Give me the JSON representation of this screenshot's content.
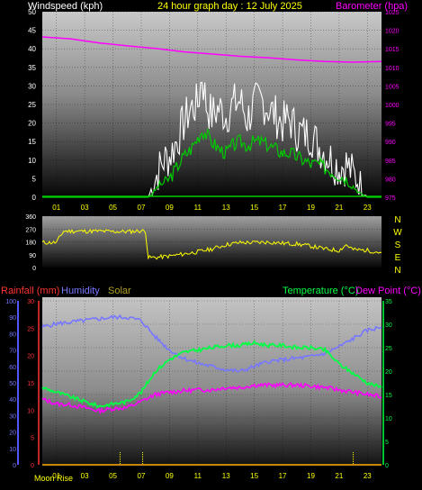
{
  "header": {
    "wind_title": "Windspeed (kph)",
    "graph_title": "24 hour graph day : 12 July 2025",
    "baro_title": "Barometer (hpa)"
  },
  "lower_header": {
    "rainfall": "Rainfall (mm)",
    "humidity": "Humidity",
    "solar": "Solar",
    "temperature": "Temperature (°C)",
    "dewpoint": "Dew Point (°C)"
  },
  "footer": {
    "moon_rise": "Moon Rise"
  },
  "colors": {
    "wind_title": "#ffffff",
    "graph_title": "#ffff00",
    "baro": "#ff00ff",
    "gust": "#ffffff",
    "wind": "#00cc00",
    "direction": "#ffff00",
    "rain": "#ff3333",
    "humidity": "#7777ff",
    "solar": "#ffff00",
    "temperature": "#00ff44",
    "dewpoint": "#ff00ff",
    "moonrise": "#ffaa00"
  },
  "chart_data": [
    {
      "type": "line",
      "title": "Windspeed (kph) / Barometer (hpa)",
      "x_ticks": [
        "01",
        "03",
        "05",
        "07",
        "09",
        "11",
        "13",
        "15",
        "17",
        "19",
        "21",
        "23"
      ],
      "y_left_ticks": [
        "0",
        "5",
        "10",
        "15",
        "20",
        "25",
        "30",
        "35",
        "40",
        "45",
        "50"
      ],
      "y_right_ticks": [
        "975",
        "980",
        "985",
        "990",
        "995",
        "1000",
        "1005",
        "1010",
        "1015",
        "1020",
        "1025"
      ],
      "xlim": [
        0,
        24
      ],
      "ylim_left": [
        0,
        50
      ],
      "ylim_right": [
        975,
        1025
      ],
      "series": [
        {
          "name": "Gust",
          "axis": "left",
          "x": [
            0,
            7.5,
            7.8,
            8.2,
            8.6,
            9,
            9.5,
            10,
            10.5,
            11,
            11.3,
            11.6,
            12,
            12.5,
            13,
            13.5,
            14,
            14.5,
            15,
            15.5,
            16,
            16.5,
            17,
            17.5,
            18,
            18.5,
            19,
            19.5,
            20,
            20.5,
            21,
            21.5,
            22,
            22.5,
            23,
            24
          ],
          "values": [
            0,
            0,
            3,
            7,
            10,
            11,
            15,
            20,
            24,
            25,
            33,
            25,
            22,
            24,
            22,
            25,
            26,
            21,
            25,
            26,
            24,
            22,
            20,
            21,
            18,
            17,
            17,
            14,
            12,
            10,
            8,
            9,
            6,
            4,
            0,
            0
          ]
        },
        {
          "name": "Wind",
          "axis": "left",
          "x": [
            0,
            7.5,
            7.8,
            8.2,
            8.6,
            9,
            9.5,
            10,
            10.5,
            11,
            11.3,
            11.6,
            12,
            12.5,
            13,
            13.5,
            14,
            14.5,
            15,
            15.5,
            16,
            16.5,
            17,
            17.5,
            18,
            18.5,
            19,
            19.5,
            20,
            20.5,
            21,
            21.5,
            22,
            22.5,
            23,
            24
          ],
          "values": [
            0,
            0,
            1,
            3,
            4,
            5,
            8,
            11,
            13,
            16,
            18,
            17,
            15,
            13,
            12,
            14,
            15,
            14,
            15,
            15,
            14,
            13,
            12,
            12,
            11,
            10,
            9,
            9,
            8,
            7,
            6,
            5,
            3,
            1,
            0,
            0
          ]
        },
        {
          "name": "Barometer",
          "axis": "right",
          "x": [
            0,
            2,
            4,
            6,
            8,
            10,
            12,
            14,
            16,
            18,
            20,
            22,
            24
          ],
          "values": [
            1018.2,
            1017.7,
            1016.6,
            1015.8,
            1015.1,
            1014.2,
            1013.6,
            1013.0,
            1012.6,
            1012.0,
            1011.6,
            1011.4,
            1011.6
          ]
        }
      ]
    },
    {
      "type": "line",
      "title": "Wind direction",
      "y_left_ticks": [
        "0",
        "90",
        "180",
        "270",
        "360"
      ],
      "y_right_ticks": [
        "N",
        "W",
        "S",
        "E",
        "N"
      ],
      "ylim": [
        0,
        360
      ],
      "series": [
        {
          "name": "Direction",
          "x": [
            0,
            1,
            1.5,
            2,
            3,
            4,
            5,
            6,
            7,
            7.3,
            7.5,
            8,
            9,
            10,
            11,
            12,
            13,
            14,
            15,
            16,
            17,
            18,
            19,
            20,
            21,
            21.5,
            22,
            23,
            24
          ],
          "values": [
            175,
            175,
            255,
            255,
            255,
            255,
            252,
            252,
            257,
            255,
            70,
            70,
            80,
            95,
            110,
            130,
            160,
            175,
            175,
            178,
            170,
            165,
            150,
            130,
            120,
            160,
            125,
            120,
            105
          ]
        }
      ]
    },
    {
      "type": "line",
      "title": "Rainfall / Humidity / Solar / Temperature / Dew Point",
      "x_ticks": [
        "01",
        "03",
        "05",
        "07",
        "09",
        "11",
        "13",
        "15",
        "17",
        "19",
        "21",
        "23"
      ],
      "y_humidity_ticks": [
        "0",
        "10",
        "20",
        "30",
        "40",
        "50",
        "60",
        "70",
        "80",
        "90",
        "100"
      ],
      "y_rain_ticks": [
        "0",
        "5",
        "10",
        "15",
        "20",
        "25",
        "30"
      ],
      "y_temp_ticks": [
        "0",
        "5",
        "10",
        "15",
        "20",
        "25",
        "30",
        "35"
      ],
      "ylim_humidity": [
        0,
        100
      ],
      "ylim_rain": [
        0,
        30
      ],
      "ylim_temp": [
        0,
        35
      ],
      "series": [
        {
          "name": "Humidity",
          "axis": "humidity",
          "x": [
            0,
            1,
            2,
            3,
            4,
            5,
            6,
            7,
            8,
            9,
            10,
            11,
            12,
            13,
            14,
            15,
            16,
            17,
            18,
            19,
            20,
            21,
            22,
            23,
            24
          ],
          "values": [
            84,
            86,
            87,
            88,
            89,
            90,
            90,
            88,
            78,
            70,
            65,
            62,
            60,
            58,
            57,
            60,
            63,
            64,
            65,
            66,
            68,
            72,
            77,
            82,
            84
          ]
        },
        {
          "name": "Temperature",
          "axis": "temp",
          "x": [
            0,
            1,
            2,
            3,
            4,
            5,
            6,
            7,
            8,
            9,
            10,
            11,
            12,
            13,
            14,
            15,
            16,
            17,
            18,
            19,
            20,
            21,
            22,
            23,
            24
          ],
          "values": [
            16.5,
            15.5,
            14.5,
            13.5,
            12.5,
            13.0,
            13.5,
            15.5,
            20,
            22.5,
            24,
            24.5,
            25,
            25.5,
            25.5,
            26,
            25.5,
            25.5,
            25,
            25,
            24.5,
            21.5,
            19.5,
            17.5,
            16.5
          ]
        },
        {
          "name": "Dew Point",
          "axis": "temp",
          "x": [
            0,
            1,
            2,
            3,
            4,
            5,
            6,
            7,
            8,
            9,
            10,
            11,
            12,
            13,
            14,
            15,
            16,
            17,
            18,
            19,
            20,
            21,
            22,
            23,
            24
          ],
          "values": [
            14,
            13,
            12.8,
            12.2,
            11.5,
            12,
            12.2,
            13.5,
            15,
            15.5,
            15.8,
            16,
            16,
            16.5,
            16.5,
            17,
            17,
            17,
            17,
            16.8,
            16.5,
            16,
            15.5,
            15,
            14.5
          ]
        },
        {
          "name": "Rainfall",
          "axis": "rain",
          "x": [
            0,
            24
          ],
          "values": [
            0,
            0
          ]
        },
        {
          "name": "Solar",
          "axis": "humidity",
          "x": [
            0,
            24
          ],
          "values": [
            0,
            0
          ]
        }
      ],
      "moon_rise_markers": [
        5.5,
        7.1,
        22
      ]
    }
  ]
}
